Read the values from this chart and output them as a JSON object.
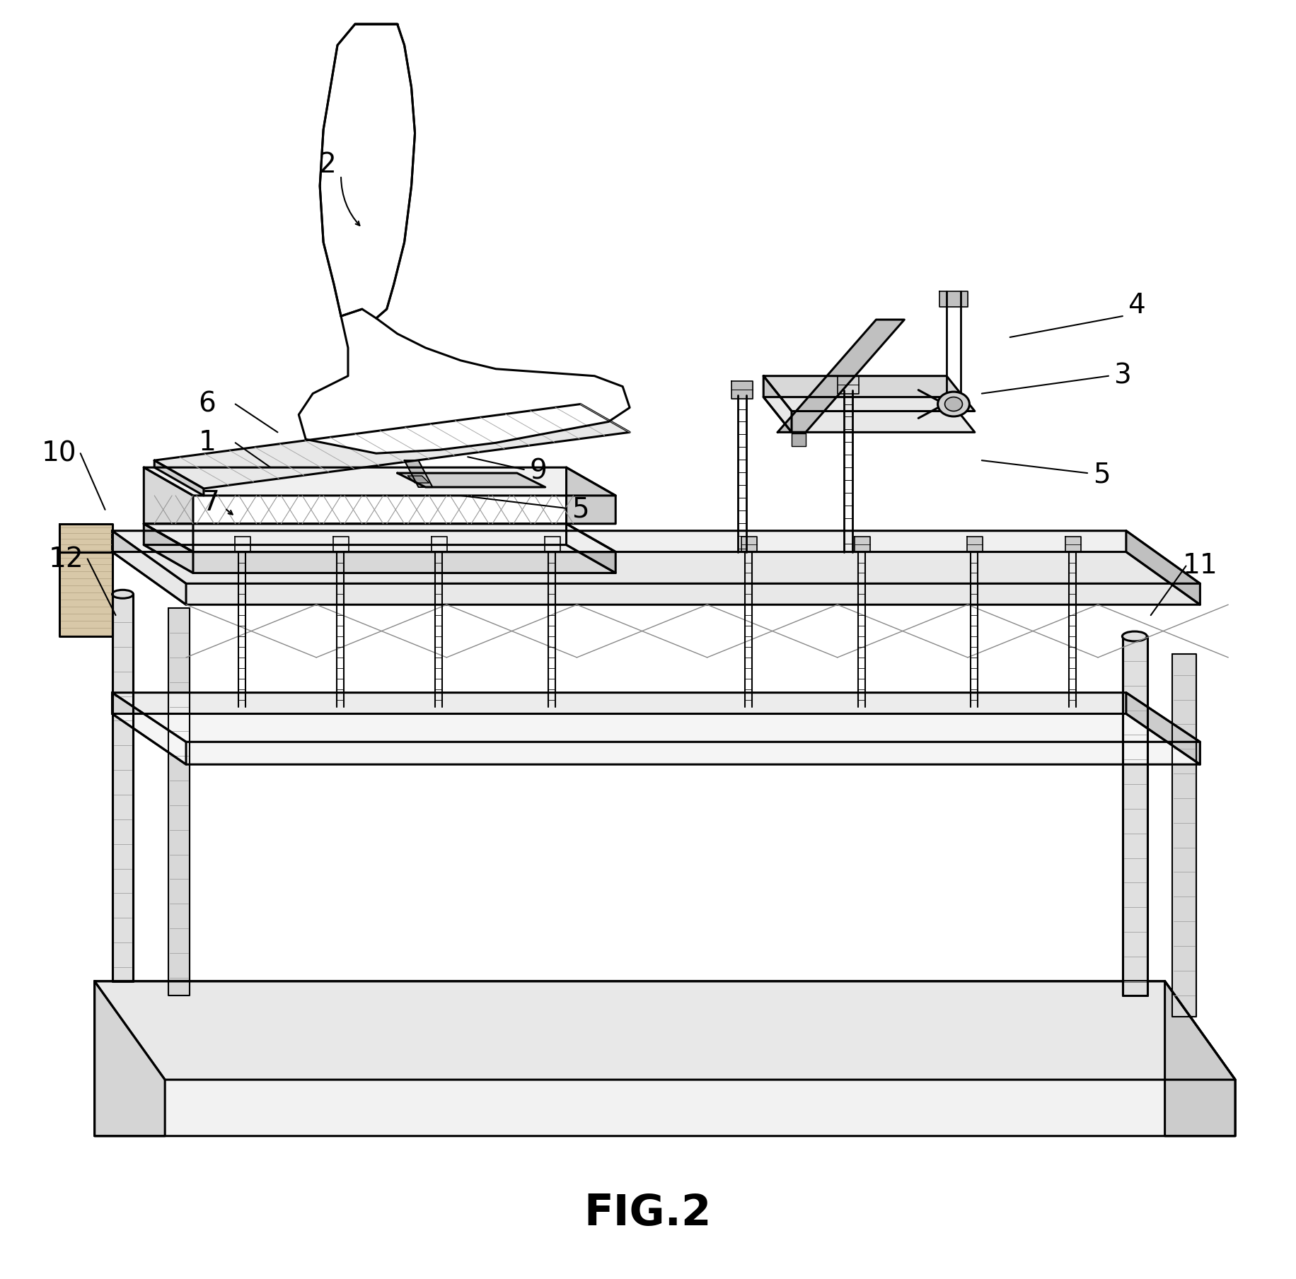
{
  "title": "FIG.2",
  "background_color": "#ffffff",
  "line_color": "#000000",
  "fig_width": 18.33,
  "fig_height": 18.09,
  "label_fontsize": 28,
  "caption_fontsize": 44
}
